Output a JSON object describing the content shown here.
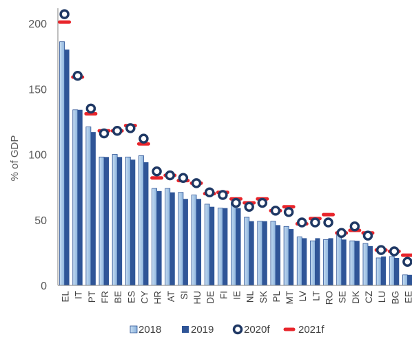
{
  "chart_data": {
    "type": "bar",
    "title": "",
    "xlabel": "",
    "ylabel": "% of GDP",
    "ylim": [
      0,
      200
    ],
    "yticks": [
      0,
      50,
      100,
      150,
      200
    ],
    "grid": false,
    "legend_position": "bottom",
    "categories": [
      "EL",
      "IT",
      "PT",
      "FR",
      "BE",
      "ES",
      "CY",
      "HR",
      "AT",
      "SI",
      "HU",
      "DE",
      "FI",
      "IE",
      "NL",
      "SK",
      "PL",
      "MT",
      "LV",
      "LT",
      "RO",
      "SE",
      "DK",
      "CZ",
      "LU",
      "BG",
      "EE"
    ],
    "series": [
      {
        "name": "2018",
        "kind": "bar",
        "color": "#9dc3e6",
        "values": [
          186,
          134,
          121,
          98,
          100,
          98,
          99,
          74,
          74,
          71,
          69,
          62,
          59,
          63,
          52,
          49,
          49,
          45,
          37,
          34,
          35,
          39,
          34,
          32,
          21,
          22,
          8
        ]
      },
      {
        "name": "2019",
        "kind": "bar",
        "color": "#2f5597",
        "values": [
          180,
          134,
          117,
          98,
          98,
          96,
          94,
          72,
          71,
          66,
          66,
          60,
          59,
          59,
          49,
          49,
          46,
          43,
          36,
          36,
          36,
          35,
          34,
          30,
          22,
          21,
          8
        ]
      },
      {
        "name": "2020f",
        "kind": "marker-circle",
        "color": "#1f3864",
        "values": [
          207,
          160,
          135,
          116,
          118,
          120,
          112,
          87,
          84,
          82,
          78,
          71,
          69,
          63,
          60,
          63,
          57,
          56,
          48,
          48,
          48,
          40,
          45,
          38,
          27,
          26,
          18
        ]
      },
      {
        "name": "2021f",
        "kind": "marker-dash",
        "color": "#e8252b",
        "values": [
          201,
          159,
          131,
          118,
          118,
          122,
          108,
          82,
          84,
          80,
          78,
          70,
          71,
          66,
          63,
          66,
          57,
          60,
          47,
          51,
          54,
          40,
          42,
          40,
          27,
          26,
          23
        ]
      }
    ]
  }
}
